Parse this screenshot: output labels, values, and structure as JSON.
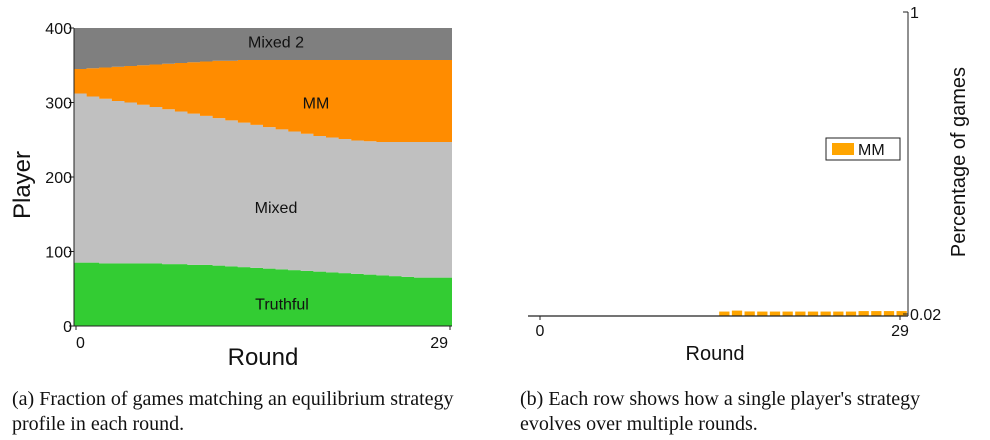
{
  "chart_data": [
    {
      "type": "area",
      "xlabel": "Round",
      "ylabel": "Player",
      "x_ticks": [
        "0",
        "29"
      ],
      "y_ticks": [
        "0",
        "100",
        "200",
        "300",
        "400"
      ],
      "xlim": [
        0,
        29
      ],
      "ylim": [
        0,
        400
      ],
      "bands": [
        {
          "name": "Truthful",
          "label": "Truthful",
          "color": "#33cc33",
          "lower": [
            0,
            0,
            0,
            0,
            0,
            0,
            0,
            0,
            0,
            0,
            0,
            0,
            0,
            0,
            0,
            0,
            0,
            0,
            0,
            0,
            0,
            0,
            0,
            0,
            0,
            0,
            0,
            0,
            0,
            0
          ],
          "upper": [
            85,
            85,
            84,
            84,
            84,
            84,
            84,
            83,
            83,
            82,
            82,
            81,
            80,
            79,
            78,
            77,
            76,
            75,
            74,
            73,
            72,
            71,
            70,
            69,
            68,
            67,
            66,
            65,
            65,
            65
          ]
        },
        {
          "name": "Mixed",
          "label": "Mixed",
          "color": "#c0c0c0",
          "lower": [
            85,
            85,
            84,
            84,
            84,
            84,
            84,
            83,
            83,
            82,
            82,
            81,
            80,
            79,
            78,
            77,
            76,
            75,
            74,
            73,
            72,
            71,
            70,
            69,
            68,
            67,
            66,
            65,
            65,
            65
          ],
          "upper": [
            312,
            308,
            305,
            302,
            300,
            297,
            294,
            291,
            288,
            285,
            282,
            279,
            276,
            273,
            270,
            267,
            264,
            261,
            258,
            255,
            253,
            251,
            249,
            248,
            247,
            247,
            247,
            247,
            247,
            247
          ]
        },
        {
          "name": "MM",
          "label": "MM",
          "color": "#ff8c00",
          "lower": [
            312,
            308,
            305,
            302,
            300,
            297,
            294,
            291,
            288,
            285,
            282,
            279,
            276,
            273,
            270,
            267,
            264,
            261,
            258,
            255,
            253,
            251,
            249,
            248,
            247,
            247,
            247,
            247,
            247,
            247
          ],
          "upper": [
            345,
            346,
            347,
            348,
            349,
            350,
            351,
            352,
            353,
            354,
            355,
            356,
            356,
            357,
            357,
            357,
            357,
            357,
            357,
            357,
            357,
            357,
            357,
            357,
            357,
            357,
            357,
            357,
            357,
            357
          ]
        },
        {
          "name": "Mixed 2",
          "label": "Mixed 2",
          "color": "#7f7f7f",
          "lower": [
            345,
            346,
            347,
            348,
            349,
            350,
            351,
            352,
            353,
            354,
            355,
            356,
            356,
            357,
            357,
            357,
            357,
            357,
            357,
            357,
            357,
            357,
            357,
            357,
            357,
            357,
            357,
            357,
            357,
            357
          ],
          "upper": [
            400,
            400,
            400,
            400,
            400,
            400,
            400,
            400,
            400,
            400,
            400,
            400,
            400,
            400,
            400,
            400,
            400,
            400,
            400,
            400,
            400,
            400,
            400,
            400,
            400,
            400,
            400,
            400,
            400,
            400
          ]
        }
      ]
    },
    {
      "type": "bar",
      "xlabel": "Round",
      "ylabel": "Percentage of games",
      "x_ticks": [
        "0",
        "29"
      ],
      "y_ticks": [
        "0.02",
        "1"
      ],
      "xlim": [
        0,
        29
      ],
      "ylim": [
        0.02,
        1
      ],
      "legend": {
        "entries": [
          "MM"
        ],
        "placement": "center-right"
      },
      "series": [
        {
          "name": "MM",
          "color": "#ffa500",
          "x": [
            0,
            1,
            2,
            3,
            4,
            5,
            6,
            7,
            8,
            9,
            10,
            11,
            12,
            13,
            14,
            15,
            16,
            17,
            18,
            19,
            20,
            21,
            22,
            23,
            24,
            25,
            26,
            27,
            28,
            29
          ],
          "values": [
            0,
            0,
            0,
            0,
            0,
            0,
            0,
            0,
            0,
            0,
            0,
            0,
            0,
            0,
            0,
            0.037,
            0.045,
            0.038,
            0.037,
            0.037,
            0.037,
            0.037,
            0.037,
            0.037,
            0.037,
            0.037,
            0.041,
            0.041,
            0.041,
            0.041
          ]
        }
      ]
    }
  ],
  "captions": {
    "a": "(a) Fraction of games matching an equilibrium strategy profile in each round.",
    "b": "(b) Each row shows how a single player's strategy evolves over multiple rounds."
  }
}
